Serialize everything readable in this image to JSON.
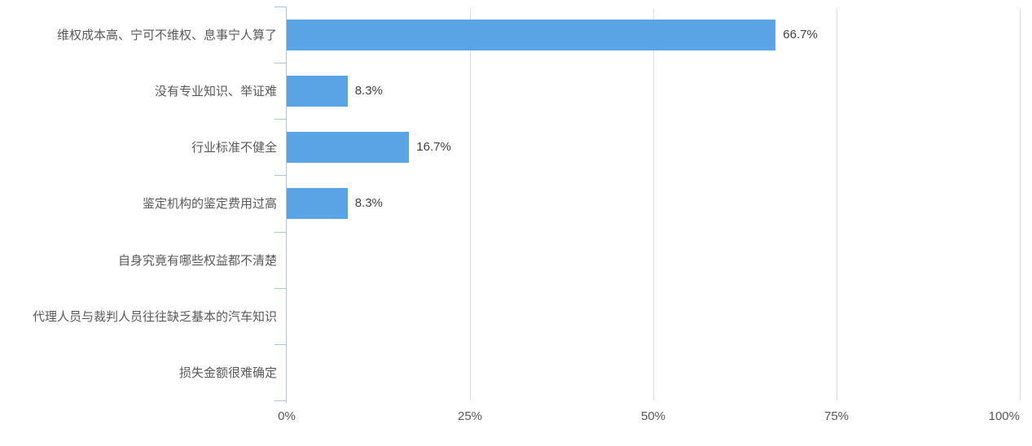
{
  "chart_data": {
    "type": "bar",
    "orientation": "horizontal",
    "categories": [
      "维权成本高、宁可不维权、息事宁人算了",
      "没有专业知识、举证难",
      "行业标准不健全",
      "鉴定机构的鉴定费用过高",
      "自身究竟有哪些权益都不清楚",
      "代理人员与裁判人员往往缺乏基本的汽车知识",
      "损失金额很难确定"
    ],
    "values": [
      66.7,
      8.3,
      16.7,
      8.3,
      0,
      0,
      0
    ],
    "value_labels": [
      "66.7%",
      "8.3%",
      "16.7%",
      "8.3%",
      "",
      "",
      ""
    ],
    "x_axis": {
      "min": 0,
      "max": 100,
      "ticks": [
        "0%",
        "25%",
        "50%",
        "75%",
        "100%"
      ]
    },
    "grid": true,
    "legend": "none",
    "colors": {
      "bar": "#5AA4E5",
      "gridline": "#DCDCDC",
      "axis": "#AFC6DA",
      "category_text": "#595959",
      "value_text": "#404040",
      "tick_text": "#555555"
    }
  }
}
